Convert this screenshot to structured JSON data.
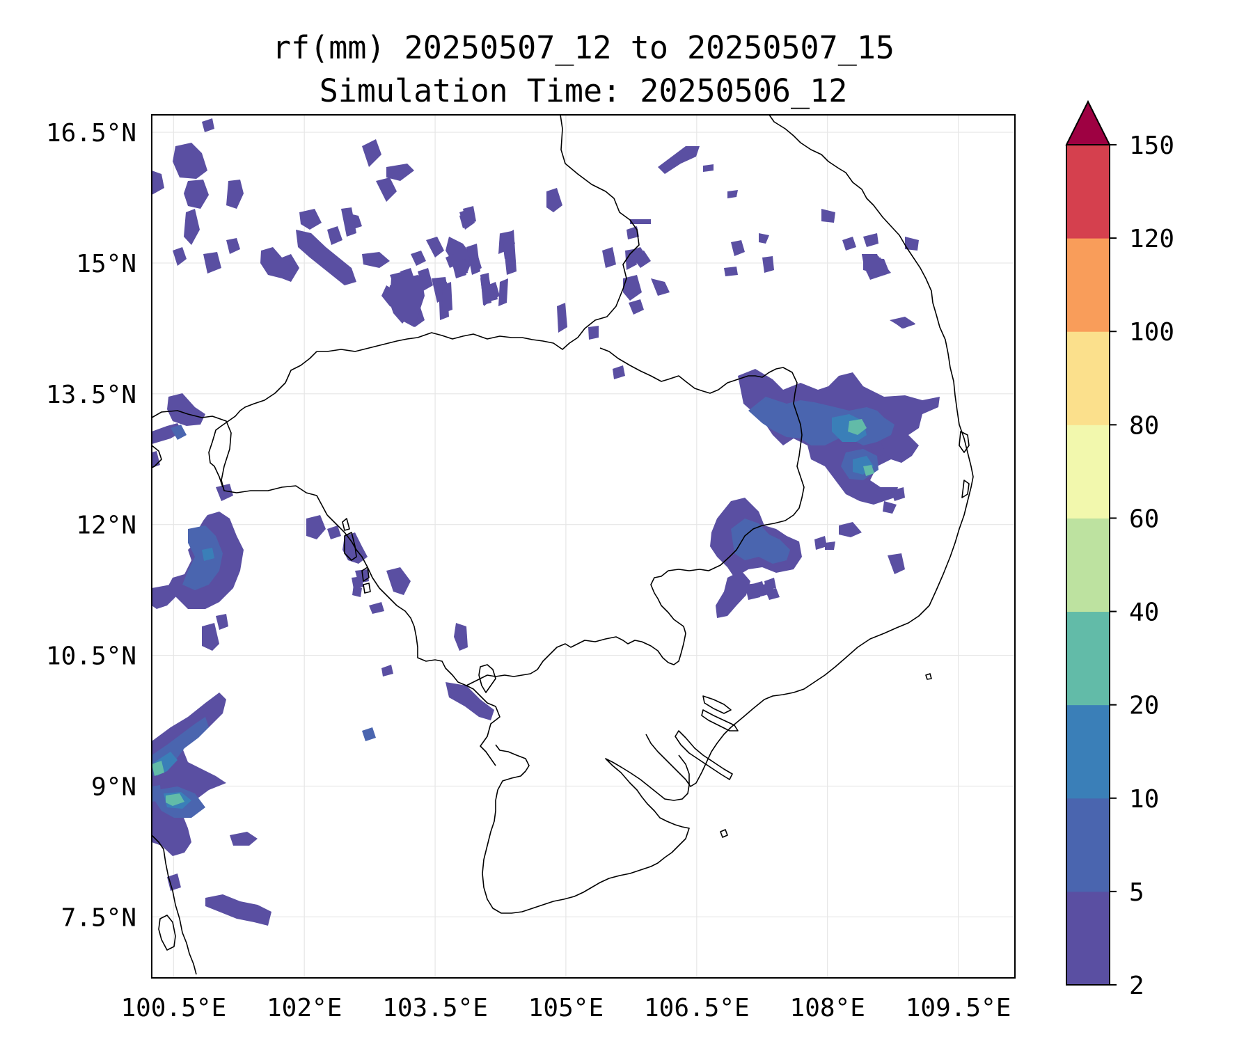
{
  "title": {
    "line1": "rf(mm) 20250507_12 to 20250507_15",
    "line2": "Simulation Time: 20250506_12"
  },
  "map": {
    "extent": {
      "lon": [
        100.25,
        110.15
      ],
      "lat": [
        6.8,
        16.7
      ]
    },
    "lat_labels": [
      {
        "value": 16.5,
        "label": "16.5°N"
      },
      {
        "value": 15.0,
        "label": "15°N"
      },
      {
        "value": 13.5,
        "label": "13.5°N"
      },
      {
        "value": 12.0,
        "label": "12°N"
      },
      {
        "value": 10.5,
        "label": "10.5°N"
      },
      {
        "value": 9.0,
        "label": "9°N"
      },
      {
        "value": 7.5,
        "label": "7.5°N"
      }
    ],
    "lon_labels": [
      {
        "value": 100.5,
        "label": "100.5°E"
      },
      {
        "value": 102.0,
        "label": "102°E"
      },
      {
        "value": 103.5,
        "label": "103.5°E"
      },
      {
        "value": 105.0,
        "label": "105°E"
      },
      {
        "value": 106.5,
        "label": "106.5°E"
      },
      {
        "value": 108.0,
        "label": "108°E"
      },
      {
        "value": 109.5,
        "label": "109.5°E"
      }
    ],
    "gridlines": true,
    "colors": {
      "coast": "#000000",
      "grid": "#e6e6e6"
    }
  },
  "colorbar": {
    "levels": [
      2,
      5,
      10,
      20,
      40,
      60,
      80,
      100,
      120,
      150
    ],
    "tick_labels": [
      "2",
      "5",
      "10",
      "20",
      "40",
      "60",
      "80",
      "100",
      "120",
      "150"
    ],
    "colors": [
      "#5a4fa2",
      "#4a65af",
      "#3a7fb8",
      "#62bba8",
      "#bde2a0",
      "#f2f8ad",
      "#fbe08c",
      "#f99d5a",
      "#d5404e"
    ],
    "extend_color": "#9e0142"
  }
}
